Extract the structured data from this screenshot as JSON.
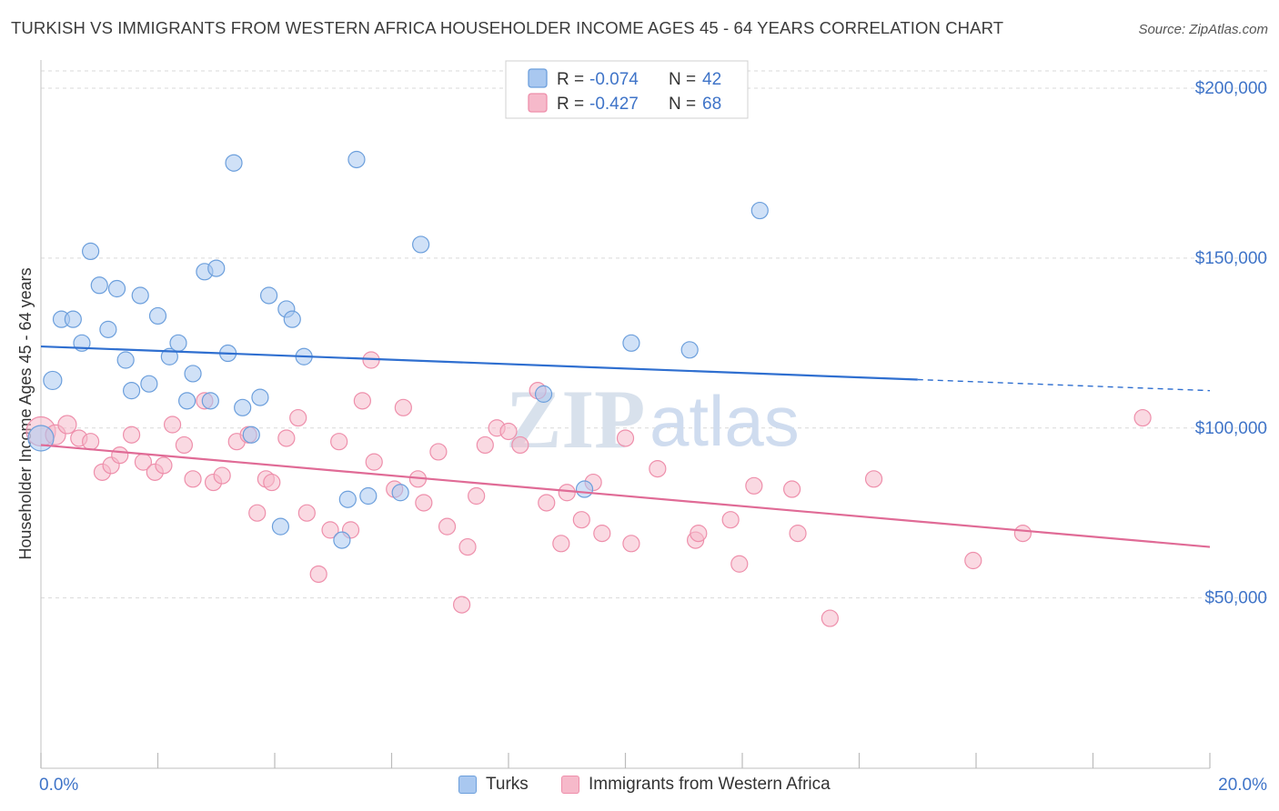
{
  "title": "TURKISH VS IMMIGRANTS FROM WESTERN AFRICA HOUSEHOLDER INCOME AGES 45 - 64 YEARS CORRELATION CHART",
  "source": "Source: ZipAtlas.com",
  "watermark": {
    "zip": "ZIP",
    "atlas": "atlas"
  },
  "colors": {
    "turks_fill": "#a9c8f0",
    "turks_stroke": "#6c9fdc",
    "turks_line": "#2f6fd0",
    "wa_fill": "#f6b9ca",
    "wa_stroke": "#ee8fab",
    "wa_line": "#e06b96",
    "axis_text": "#3f74c8",
    "grid": "#d9d9d9"
  },
  "legend_top": {
    "rows": [
      {
        "series": "Turks",
        "r_label": "R =",
        "r_value": "-0.074",
        "n_label": "N =",
        "n_value": "42"
      },
      {
        "series": "Immigrants from Western Africa",
        "r_label": "R =",
        "r_value": "-0.427",
        "n_label": "N =",
        "n_value": "68"
      }
    ]
  },
  "legend_bottom": {
    "items": [
      "Turks",
      "Immigrants from Western Africa"
    ]
  },
  "chart_data": {
    "type": "scatter",
    "title": "TURKISH VS IMMIGRANTS FROM WESTERN AFRICA HOUSEHOLDER INCOME AGES 45 - 64 YEARS CORRELATION CHART",
    "xlabel": "",
    "ylabel": "Householder Income Ages 45 - 64 years",
    "xlim": [
      0.0,
      20.0
    ],
    "ylim": [
      0,
      210000
    ],
    "x_tick_labels": [
      "0.0%",
      "20.0%"
    ],
    "x_ticks": [
      0,
      2,
      4,
      6,
      8,
      10,
      12,
      14,
      16,
      18,
      20
    ],
    "y_ticks": [
      50000,
      100000,
      150000,
      200000
    ],
    "y_tick_labels": [
      "$50,000",
      "$100,000",
      "$150,000",
      "$200,000"
    ],
    "grid": "horizontal dashed",
    "legend_placement": "top-center",
    "series": [
      {
        "name": "Turks",
        "regression": {
          "x0": 0.0,
          "y0": 124000,
          "x_solid_end": 15.0,
          "x1": 20.0,
          "y1": 111000
        },
        "points": [
          [
            0.0,
            97000,
            28
          ],
          [
            0.2,
            114000,
            20
          ],
          [
            0.35,
            132000,
            18
          ],
          [
            0.55,
            132000,
            18
          ],
          [
            0.7,
            125000,
            18
          ],
          [
            0.85,
            152000,
            18
          ],
          [
            1.0,
            142000,
            18
          ],
          [
            1.15,
            129000,
            18
          ],
          [
            1.3,
            141000,
            18
          ],
          [
            1.45,
            120000,
            18
          ],
          [
            1.55,
            111000,
            18
          ],
          [
            1.7,
            139000,
            18
          ],
          [
            1.85,
            113000,
            18
          ],
          [
            2.0,
            133000,
            18
          ],
          [
            2.2,
            121000,
            18
          ],
          [
            2.35,
            125000,
            18
          ],
          [
            2.5,
            108000,
            18
          ],
          [
            2.6,
            116000,
            18
          ],
          [
            2.8,
            146000,
            18
          ],
          [
            2.9,
            108000,
            18
          ],
          [
            3.0,
            147000,
            18
          ],
          [
            3.2,
            122000,
            18
          ],
          [
            3.3,
            178000,
            18
          ],
          [
            3.45,
            106000,
            18
          ],
          [
            3.6,
            98000,
            18
          ],
          [
            3.75,
            109000,
            18
          ],
          [
            3.9,
            139000,
            18
          ],
          [
            4.1,
            71000,
            18
          ],
          [
            4.2,
            135000,
            18
          ],
          [
            4.3,
            132000,
            18
          ],
          [
            4.5,
            121000,
            18
          ],
          [
            5.15,
            67000,
            18
          ],
          [
            5.25,
            79000,
            18
          ],
          [
            5.4,
            179000,
            18
          ],
          [
            5.6,
            80000,
            18
          ],
          [
            6.15,
            81000,
            18
          ],
          [
            6.5,
            154000,
            18
          ],
          [
            8.6,
            110000,
            18
          ],
          [
            9.3,
            82000,
            18
          ],
          [
            10.1,
            125000,
            18
          ],
          [
            11.1,
            123000,
            18
          ],
          [
            12.3,
            164000,
            18
          ]
        ]
      },
      {
        "name": "Immigrants from Western Africa",
        "regression": {
          "x0": 0.0,
          "y0": 95000,
          "x1": 20.0,
          "y1": 65000
        },
        "points": [
          [
            0.0,
            99000,
            32
          ],
          [
            0.25,
            98000,
            22
          ],
          [
            0.45,
            101000,
            20
          ],
          [
            0.65,
            97000,
            18
          ],
          [
            0.85,
            96000,
            18
          ],
          [
            1.05,
            87000,
            18
          ],
          [
            1.2,
            89000,
            18
          ],
          [
            1.35,
            92000,
            18
          ],
          [
            1.55,
            98000,
            18
          ],
          [
            1.75,
            90000,
            18
          ],
          [
            1.95,
            87000,
            18
          ],
          [
            2.1,
            89000,
            18
          ],
          [
            2.25,
            101000,
            18
          ],
          [
            2.45,
            95000,
            18
          ],
          [
            2.6,
            85000,
            18
          ],
          [
            2.8,
            108000,
            18
          ],
          [
            2.95,
            84000,
            18
          ],
          [
            3.1,
            86000,
            18
          ],
          [
            3.35,
            96000,
            18
          ],
          [
            3.55,
            98000,
            18
          ],
          [
            3.7,
            75000,
            18
          ],
          [
            3.85,
            85000,
            18
          ],
          [
            3.95,
            84000,
            18
          ],
          [
            4.2,
            97000,
            18
          ],
          [
            4.4,
            103000,
            18
          ],
          [
            4.55,
            75000,
            18
          ],
          [
            4.75,
            57000,
            18
          ],
          [
            4.95,
            70000,
            18
          ],
          [
            5.1,
            96000,
            18
          ],
          [
            5.3,
            70000,
            18
          ],
          [
            5.5,
            108000,
            18
          ],
          [
            5.65,
            120000,
            18
          ],
          [
            5.7,
            90000,
            18
          ],
          [
            6.05,
            82000,
            18
          ],
          [
            6.2,
            106000,
            18
          ],
          [
            6.45,
            85000,
            18
          ],
          [
            6.55,
            78000,
            18
          ],
          [
            6.8,
            93000,
            18
          ],
          [
            6.95,
            71000,
            18
          ],
          [
            7.2,
            48000,
            18
          ],
          [
            7.3,
            65000,
            18
          ],
          [
            7.45,
            80000,
            18
          ],
          [
            7.6,
            95000,
            18
          ],
          [
            7.8,
            100000,
            18
          ],
          [
            8.0,
            99000,
            18
          ],
          [
            8.2,
            95000,
            18
          ],
          [
            8.5,
            111000,
            18
          ],
          [
            8.65,
            78000,
            18
          ],
          [
            8.9,
            66000,
            18
          ],
          [
            9.0,
            81000,
            18
          ],
          [
            9.25,
            73000,
            18
          ],
          [
            9.45,
            84000,
            18
          ],
          [
            9.6,
            69000,
            18
          ],
          [
            10.0,
            97000,
            18
          ],
          [
            10.1,
            66000,
            18
          ],
          [
            10.55,
            88000,
            18
          ],
          [
            11.2,
            67000,
            18
          ],
          [
            11.25,
            69000,
            18
          ],
          [
            11.8,
            73000,
            18
          ],
          [
            11.95,
            60000,
            18
          ],
          [
            12.2,
            83000,
            18
          ],
          [
            12.85,
            82000,
            18
          ],
          [
            12.95,
            69000,
            18
          ],
          [
            13.5,
            44000,
            18
          ],
          [
            14.25,
            85000,
            18
          ],
          [
            15.95,
            61000,
            18
          ],
          [
            16.8,
            69000,
            18
          ],
          [
            18.85,
            103000,
            18
          ]
        ]
      }
    ]
  }
}
